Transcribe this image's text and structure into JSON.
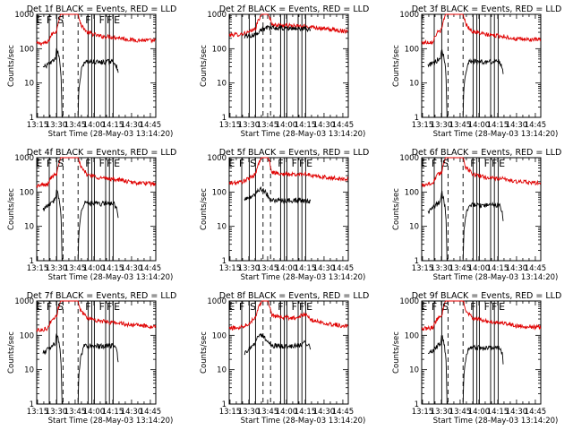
{
  "chart_data": [
    {
      "type": "line",
      "title": "Det 1f BLACK = Events, RED = LLD",
      "xlabel": "Start Time (28-May-03 13:14:20)",
      "ylabel": "Counts/sec",
      "x_ticks": [
        "13:15",
        "13:30",
        "13:45",
        "14:00",
        "14:15",
        "14:30",
        "14:45"
      ],
      "y_ticks": [
        "1",
        "10",
        "100",
        "1000"
      ],
      "xlim_min": [
        0,
        95
      ],
      "ylim": [
        1,
        1000
      ],
      "ylog": true,
      "solid_markers_min": [
        10,
        16,
        41,
        44,
        46,
        55,
        58,
        61
      ],
      "dashed_markers_min": [
        21,
        33
      ],
      "interval_labels": [
        "E",
        "F",
        "S",
        "F",
        "F",
        "F",
        "E"
      ],
      "events_kp": [
        [
          5,
          27
        ],
        [
          9,
          35
        ],
        [
          10,
          35
        ],
        [
          15,
          50
        ],
        [
          16,
          100
        ],
        [
          20,
          0.5
        ],
        [
          33,
          0.5
        ],
        [
          38,
          42
        ],
        [
          50,
          40
        ],
        [
          59,
          42
        ],
        [
          62,
          40
        ],
        [
          64,
          30
        ],
        [
          65,
          17
        ]
      ],
      "lld_kp": [
        [
          0,
          140
        ],
        [
          5,
          145
        ],
        [
          9,
          150
        ],
        [
          12,
          260
        ],
        [
          16,
          330
        ],
        [
          19,
          1000
        ],
        [
          21,
          1000
        ],
        [
          33,
          1000
        ],
        [
          35,
          500
        ],
        [
          40,
          300
        ],
        [
          50,
          230
        ],
        [
          59,
          220
        ],
        [
          65,
          210
        ],
        [
          75,
          180
        ],
        [
          95,
          170
        ]
      ]
    },
    {
      "type": "line",
      "title": "Det 2f BLACK = Events, RED = LLD",
      "xlabel": "Start Time (28-May-03 13:14:20)",
      "ylabel": "Counts/sec",
      "x_ticks": [
        "13:15",
        "13:30",
        "13:45",
        "14:00",
        "14:15",
        "14:30",
        "14:45"
      ],
      "y_ticks": [
        "1",
        "10",
        "100",
        "1000"
      ],
      "xlim_min": [
        0,
        95
      ],
      "ylim": [
        1,
        1000
      ],
      "ylog": true,
      "solid_markers_min": [
        10,
        16,
        21,
        41,
        44,
        46,
        55,
        58,
        61
      ],
      "dashed_markers_min": [
        27,
        33
      ],
      "interval_labels": [],
      "events_kp": [
        [
          12,
          230
        ],
        [
          16,
          240
        ],
        [
          19,
          250
        ],
        [
          21,
          260
        ],
        [
          25,
          350
        ],
        [
          30,
          400
        ],
        [
          45,
          390
        ],
        [
          60,
          380
        ],
        [
          65,
          360
        ]
      ],
      "lld_kp": [
        [
          0,
          250
        ],
        [
          8,
          260
        ],
        [
          12,
          280
        ],
        [
          16,
          300
        ],
        [
          21,
          380
        ],
        [
          26,
          1000
        ],
        [
          31,
          1000
        ],
        [
          34,
          500
        ],
        [
          42,
          480
        ],
        [
          55,
          450
        ],
        [
          65,
          440
        ],
        [
          75,
          380
        ],
        [
          90,
          330
        ],
        [
          95,
          330
        ]
      ]
    },
    {
      "type": "line",
      "title": "Det 3f BLACK = Events, RED = LLD",
      "xlabel": "Start Time (28-May-03 13:14:20)",
      "ylabel": "Counts/sec",
      "x_ticks": [
        "13:15",
        "13:30",
        "13:45",
        "14:00",
        "14:15",
        "14:30",
        "14:45"
      ],
      "y_ticks": [
        "1",
        "10",
        "100",
        "1000"
      ],
      "xlim_min": [
        0,
        95
      ],
      "ylim": [
        1,
        1000
      ],
      "ylog": true,
      "solid_markers_min": [
        10,
        16,
        41,
        44,
        46,
        55,
        58,
        61
      ],
      "dashed_markers_min": [
        21,
        33
      ],
      "interval_labels": [],
      "events_kp": [
        [
          5,
          30
        ],
        [
          9,
          40
        ],
        [
          10,
          38
        ],
        [
          15,
          55
        ],
        [
          16,
          95
        ],
        [
          20,
          0.5
        ],
        [
          33,
          0.5
        ],
        [
          38,
          45
        ],
        [
          50,
          40
        ],
        [
          59,
          43
        ],
        [
          62,
          42
        ],
        [
          64,
          32
        ],
        [
          65,
          18
        ]
      ],
      "lld_kp": [
        [
          0,
          150
        ],
        [
          5,
          155
        ],
        [
          9,
          160
        ],
        [
          12,
          280
        ],
        [
          16,
          350
        ],
        [
          19,
          1000
        ],
        [
          21,
          1000
        ],
        [
          33,
          1000
        ],
        [
          35,
          520
        ],
        [
          40,
          320
        ],
        [
          50,
          260
        ],
        [
          59,
          240
        ],
        [
          65,
          230
        ],
        [
          75,
          190
        ],
        [
          95,
          180
        ]
      ]
    },
    {
      "type": "line",
      "title": "Det 4f BLACK = Events, RED = LLD",
      "xlabel": "Start Time (28-May-03 13:14:20)",
      "ylabel": "Counts/sec",
      "x_ticks": [
        "13:15",
        "13:30",
        "13:45",
        "14:00",
        "14:15",
        "14:30",
        "14:45"
      ],
      "y_ticks": [
        "1",
        "10",
        "100",
        "1000"
      ],
      "xlim_min": [
        0,
        95
      ],
      "ylim": [
        1,
        1000
      ],
      "ylog": true,
      "solid_markers_min": [
        10,
        16,
        41,
        44,
        46,
        55,
        58,
        61
      ],
      "dashed_markers_min": [
        21,
        33
      ],
      "interval_labels": [
        "E",
        "F",
        "S",
        "F",
        "F",
        "F",
        "E"
      ],
      "events_kp": [
        [
          5,
          30
        ],
        [
          9,
          40
        ],
        [
          10,
          42
        ],
        [
          15,
          60
        ],
        [
          16,
          110
        ],
        [
          20,
          0.5
        ],
        [
          33,
          0.5
        ],
        [
          38,
          48
        ],
        [
          50,
          45
        ],
        [
          59,
          47
        ],
        [
          62,
          44
        ],
        [
          64,
          32
        ],
        [
          65,
          16
        ]
      ],
      "lld_kp": [
        [
          0,
          150
        ],
        [
          5,
          160
        ],
        [
          9,
          165
        ],
        [
          12,
          280
        ],
        [
          16,
          360
        ],
        [
          19,
          1000
        ],
        [
          21,
          1000
        ],
        [
          33,
          1000
        ],
        [
          35,
          520
        ],
        [
          40,
          330
        ],
        [
          50,
          260
        ],
        [
          59,
          240
        ],
        [
          65,
          230
        ],
        [
          75,
          190
        ],
        [
          95,
          170
        ]
      ]
    },
    {
      "type": "line",
      "title": "Det 5f BLACK = Events, RED = LLD",
      "xlabel": "Start Time (28-May-03 13:14:20)",
      "ylabel": "Counts/sec",
      "x_ticks": [
        "13:15",
        "13:30",
        "13:45",
        "14:00",
        "14:15",
        "14:30",
        "14:45"
      ],
      "y_ticks": [
        "1",
        "10",
        "100",
        "1000"
      ],
      "xlim_min": [
        0,
        95
      ],
      "ylim": [
        1,
        1000
      ],
      "ylog": true,
      "solid_markers_min": [
        10,
        16,
        21,
        41,
        44,
        46,
        55,
        58,
        61
      ],
      "dashed_markers_min": [
        27,
        33
      ],
      "interval_labels": [
        "E",
        "F",
        "S",
        "F",
        "F",
        "F",
        "E"
      ],
      "events_kp": [
        [
          12,
          60
        ],
        [
          16,
          70
        ],
        [
          19,
          75
        ],
        [
          21,
          90
        ],
        [
          25,
          130
        ],
        [
          33,
          60
        ],
        [
          45,
          55
        ],
        [
          55,
          58
        ],
        [
          60,
          55
        ],
        [
          65,
          52
        ]
      ],
      "lld_kp": [
        [
          0,
          180
        ],
        [
          8,
          190
        ],
        [
          12,
          210
        ],
        [
          16,
          250
        ],
        [
          21,
          330
        ],
        [
          26,
          1000
        ],
        [
          31,
          1000
        ],
        [
          34,
          380
        ],
        [
          42,
          330
        ],
        [
          55,
          320
        ],
        [
          60,
          350
        ],
        [
          65,
          300
        ],
        [
          75,
          270
        ],
        [
          90,
          240
        ],
        [
          95,
          240
        ]
      ]
    },
    {
      "type": "line",
      "title": "Det 6f BLACK = Events, RED = LLD",
      "xlabel": "Start Time (28-May-03 13:14:20)",
      "ylabel": "Counts/sec",
      "x_ticks": [
        "13:15",
        "13:30",
        "13:45",
        "14:00",
        "14:15",
        "14:30",
        "14:45"
      ],
      "y_ticks": [
        "1",
        "10",
        "100",
        "1000"
      ],
      "xlim_min": [
        0,
        95
      ],
      "ylim": [
        1,
        1000
      ],
      "ylog": true,
      "solid_markers_min": [
        10,
        16,
        41,
        44,
        46,
        55,
        58,
        61
      ],
      "dashed_markers_min": [
        21,
        33
      ],
      "interval_labels": [
        "E",
        "F",
        "S",
        "F",
        "F",
        "F",
        "E"
      ],
      "events_kp": [
        [
          5,
          25
        ],
        [
          9,
          35
        ],
        [
          10,
          36
        ],
        [
          15,
          55
        ],
        [
          16,
          100
        ],
        [
          20,
          0.5
        ],
        [
          33,
          0.5
        ],
        [
          38,
          42
        ],
        [
          50,
          40
        ],
        [
          59,
          42
        ],
        [
          62,
          40
        ],
        [
          64,
          30
        ],
        [
          65,
          15
        ]
      ],
      "lld_kp": [
        [
          0,
          160
        ],
        [
          5,
          170
        ],
        [
          9,
          180
        ],
        [
          12,
          300
        ],
        [
          16,
          380
        ],
        [
          19,
          1000
        ],
        [
          21,
          1000
        ],
        [
          33,
          1000
        ],
        [
          35,
          540
        ],
        [
          40,
          340
        ],
        [
          50,
          270
        ],
        [
          59,
          250
        ],
        [
          65,
          240
        ],
        [
          75,
          200
        ],
        [
          95,
          180
        ]
      ]
    },
    {
      "type": "line",
      "title": "Det 7f BLACK = Events, RED = LLD",
      "xlabel": "Start Time (28-May-03 13:14:20)",
      "ylabel": "Counts/sec",
      "x_ticks": [
        "13:15",
        "13:30",
        "13:45",
        "14:00",
        "14:15",
        "14:30",
        "14:45"
      ],
      "y_ticks": [
        "1",
        "10",
        "100",
        "1000"
      ],
      "xlim_min": [
        0,
        95
      ],
      "ylim": [
        1,
        1000
      ],
      "ylog": true,
      "solid_markers_min": [
        10,
        16,
        41,
        44,
        46,
        55,
        58,
        61
      ],
      "dashed_markers_min": [
        21,
        33
      ],
      "interval_labels": [
        "E",
        "F",
        "S",
        "F",
        "F",
        "F",
        "E"
      ],
      "events_kp": [
        [
          5,
          30
        ],
        [
          9,
          38
        ],
        [
          10,
          40
        ],
        [
          15,
          60
        ],
        [
          16,
          110
        ],
        [
          20,
          0.5
        ],
        [
          33,
          0.5
        ],
        [
          38,
          50
        ],
        [
          50,
          48
        ],
        [
          59,
          50
        ],
        [
          62,
          48
        ],
        [
          64,
          34
        ],
        [
          65,
          16
        ]
      ],
      "lld_kp": [
        [
          0,
          140
        ],
        [
          5,
          150
        ],
        [
          9,
          160
        ],
        [
          12,
          280
        ],
        [
          16,
          360
        ],
        [
          19,
          1000
        ],
        [
          21,
          1000
        ],
        [
          33,
          1000
        ],
        [
          35,
          520
        ],
        [
          40,
          330
        ],
        [
          50,
          260
        ],
        [
          59,
          240
        ],
        [
          65,
          230
        ],
        [
          75,
          200
        ],
        [
          95,
          180
        ]
      ]
    },
    {
      "type": "line",
      "title": "Det 8f BLACK = Events, RED = LLD",
      "xlabel": "Start Time (28-May-03 13:14:20)",
      "ylabel": "Counts/sec",
      "x_ticks": [
        "13:15",
        "13:30",
        "13:45",
        "14:00",
        "14:15",
        "14:30",
        "14:45"
      ],
      "y_ticks": [
        "1",
        "10",
        "100",
        "1000"
      ],
      "xlim_min": [
        0,
        95
      ],
      "ylim": [
        1,
        1000
      ],
      "ylog": true,
      "solid_markers_min": [
        10,
        16,
        21,
        41,
        44,
        46,
        55,
        58,
        61
      ],
      "dashed_markers_min": [
        27,
        33
      ],
      "interval_labels": [
        "E",
        "F",
        "S",
        "F",
        "F",
        "F",
        "E"
      ],
      "events_kp": [
        [
          12,
          30
        ],
        [
          16,
          40
        ],
        [
          19,
          45
        ],
        [
          21,
          70
        ],
        [
          24,
          110
        ],
        [
          34,
          50
        ],
        [
          45,
          48
        ],
        [
          55,
          50
        ],
        [
          60,
          60
        ],
        [
          65,
          45
        ]
      ],
      "lld_kp": [
        [
          0,
          160
        ],
        [
          8,
          170
        ],
        [
          12,
          190
        ],
        [
          16,
          230
        ],
        [
          21,
          330
        ],
        [
          26,
          1000
        ],
        [
          31,
          1000
        ],
        [
          34,
          380
        ],
        [
          42,
          330
        ],
        [
          55,
          320
        ],
        [
          60,
          420
        ],
        [
          65,
          280
        ],
        [
          75,
          230
        ],
        [
          90,
          190
        ],
        [
          95,
          180
        ]
      ]
    },
    {
      "type": "line",
      "title": "Det 9f BLACK = Events, RED = LLD",
      "xlabel": "Start Time (28-May-03 13:14:20)",
      "ylabel": "Counts/sec",
      "x_ticks": [
        "13:15",
        "13:30",
        "13:45",
        "14:00",
        "14:15",
        "14:30",
        "14:45"
      ],
      "y_ticks": [
        "1",
        "10",
        "100",
        "1000"
      ],
      "xlim_min": [
        0,
        95
      ],
      "ylim": [
        1,
        1000
      ],
      "ylog": true,
      "solid_markers_min": [
        10,
        16,
        41,
        44,
        46,
        55,
        58,
        61
      ],
      "dashed_markers_min": [
        21,
        33
      ],
      "interval_labels": [
        "E",
        "F",
        "S",
        "F",
        "F",
        "F",
        "E"
      ],
      "events_kp": [
        [
          5,
          28
        ],
        [
          9,
          36
        ],
        [
          10,
          38
        ],
        [
          15,
          58
        ],
        [
          16,
          105
        ],
        [
          20,
          0.5
        ],
        [
          33,
          0.5
        ],
        [
          38,
          45
        ],
        [
          50,
          42
        ],
        [
          59,
          45
        ],
        [
          62,
          43
        ],
        [
          64,
          32
        ],
        [
          65,
          16
        ]
      ],
      "lld_kp": [
        [
          0,
          150
        ],
        [
          5,
          160
        ],
        [
          9,
          170
        ],
        [
          12,
          290
        ],
        [
          16,
          370
        ],
        [
          19,
          1000
        ],
        [
          21,
          1000
        ],
        [
          33,
          1000
        ],
        [
          35,
          530
        ],
        [
          40,
          330
        ],
        [
          50,
          260
        ],
        [
          59,
          240
        ],
        [
          65,
          230
        ],
        [
          75,
          190
        ],
        [
          95,
          170
        ]
      ]
    }
  ]
}
